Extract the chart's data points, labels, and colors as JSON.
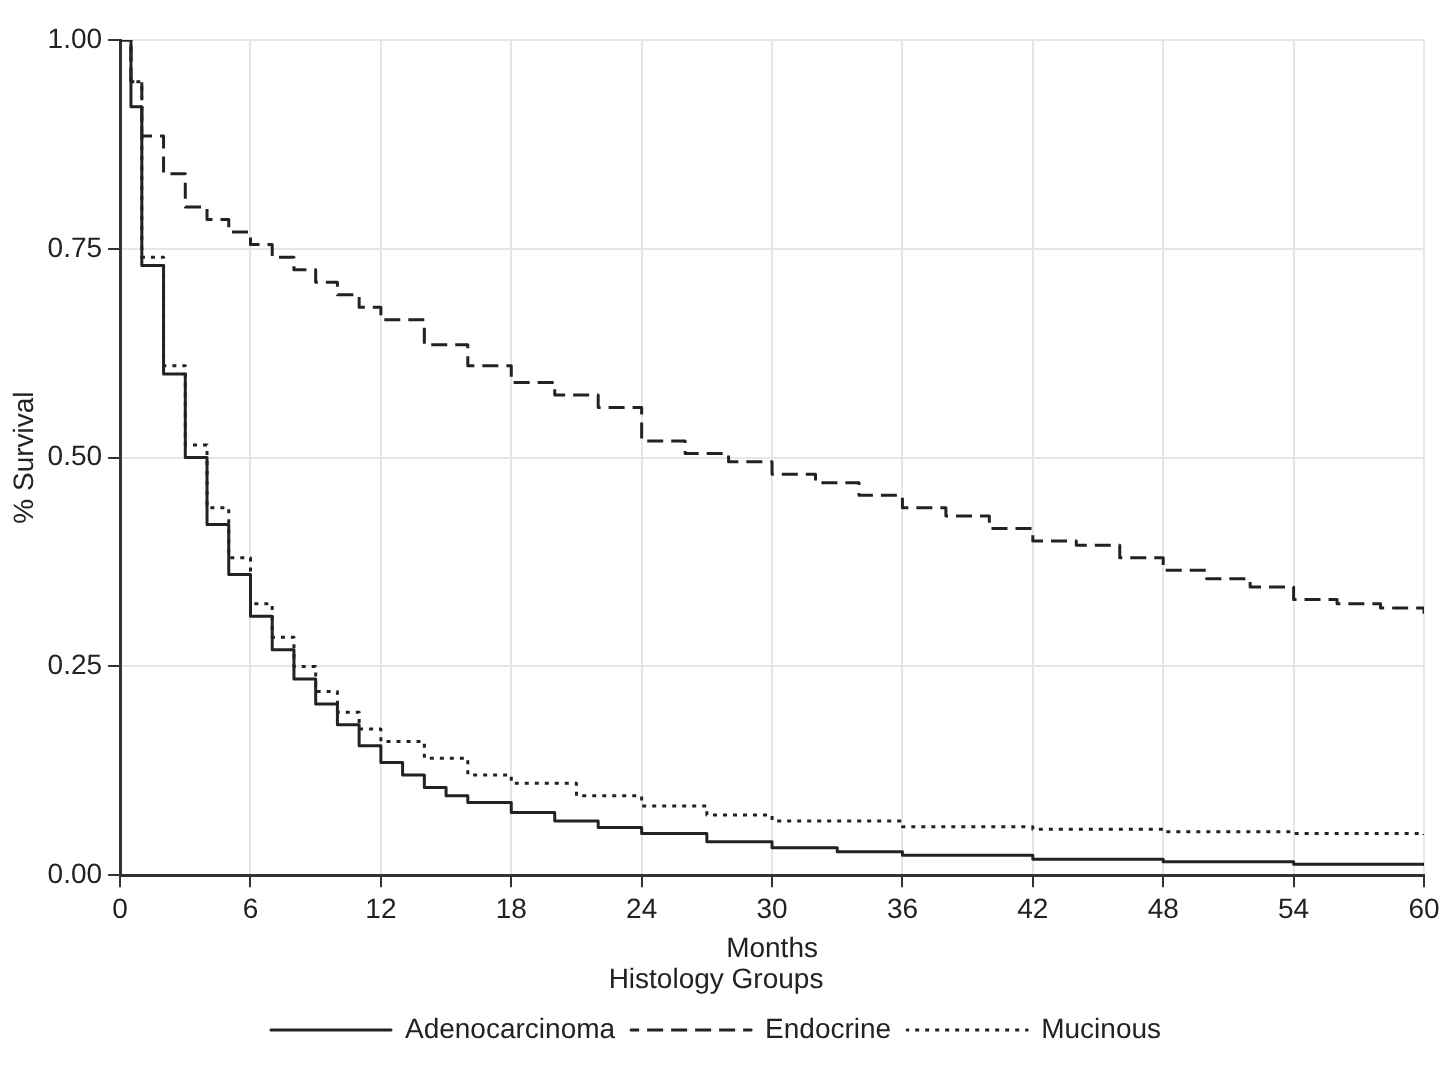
{
  "chart_data": {
    "type": "step",
    "xlabel": "Months",
    "ylabel": "% Survival",
    "legend_title": "Histology Groups",
    "xlim": [
      0,
      60
    ],
    "xticks": [
      0,
      6,
      12,
      18,
      24,
      30,
      36,
      42,
      48,
      54,
      60
    ],
    "ylim": [
      0,
      1
    ],
    "yticks": [
      {
        "value": 0,
        "label": "0.00"
      },
      {
        "value": 0.25,
        "label": "0.25"
      },
      {
        "value": 0.5,
        "label": "0.50"
      },
      {
        "value": 0.75,
        "label": "0.75"
      },
      {
        "value": 1,
        "label": "1.00"
      }
    ],
    "grid": true,
    "legend": "bottom",
    "marker": "none",
    "series": [
      {
        "name": "Adenocarcinoma",
        "color": "#222222",
        "line_style": "solid",
        "x": [
          0,
          0.5,
          1,
          2,
          3,
          4,
          5,
          6,
          7,
          8,
          9,
          10,
          11,
          12,
          13,
          14,
          15,
          16,
          18,
          20,
          22,
          24,
          27,
          30,
          33,
          36,
          42,
          48,
          54,
          60
        ],
        "values": [
          1,
          0.92,
          0.73,
          0.6,
          0.5,
          0.42,
          0.36,
          0.31,
          0.27,
          0.235,
          0.205,
          0.18,
          0.155,
          0.135,
          0.12,
          0.105,
          0.095,
          0.087,
          0.075,
          0.065,
          0.057,
          0.05,
          0.04,
          0.033,
          0.028,
          0.024,
          0.019,
          0.016,
          0.013,
          0.011
        ]
      },
      {
        "name": "Endocrine",
        "color": "#222222",
        "line_style": "dashed",
        "x": [
          0,
          0.5,
          1,
          2,
          3,
          4,
          5,
          6,
          7,
          8,
          9,
          10,
          11,
          12,
          14,
          16,
          18,
          20,
          22,
          24,
          26,
          28,
          30,
          32,
          34,
          36,
          38,
          40,
          42,
          44,
          46,
          48,
          50,
          52,
          54,
          56,
          58,
          60
        ],
        "values": [
          1,
          0.95,
          0.885,
          0.84,
          0.8,
          0.785,
          0.77,
          0.755,
          0.74,
          0.725,
          0.71,
          0.695,
          0.68,
          0.665,
          0.635,
          0.61,
          0.59,
          0.575,
          0.56,
          0.52,
          0.505,
          0.495,
          0.48,
          0.47,
          0.455,
          0.44,
          0.43,
          0.415,
          0.4,
          0.395,
          0.38,
          0.365,
          0.355,
          0.345,
          0.33,
          0.325,
          0.32,
          0.313
        ]
      },
      {
        "name": "Mucinous",
        "color": "#222222",
        "line_style": "dotted",
        "x": [
          0,
          0.5,
          1,
          2,
          3,
          4,
          5,
          6,
          7,
          8,
          9,
          10,
          11,
          12,
          14,
          16,
          18,
          21,
          24,
          27,
          30,
          36,
          42,
          48,
          54,
          60
        ],
        "values": [
          1,
          0.95,
          0.74,
          0.61,
          0.515,
          0.44,
          0.38,
          0.325,
          0.285,
          0.25,
          0.22,
          0.195,
          0.175,
          0.16,
          0.14,
          0.12,
          0.11,
          0.095,
          0.083,
          0.072,
          0.065,
          0.058,
          0.055,
          0.052,
          0.05,
          0.048
        ]
      }
    ]
  }
}
